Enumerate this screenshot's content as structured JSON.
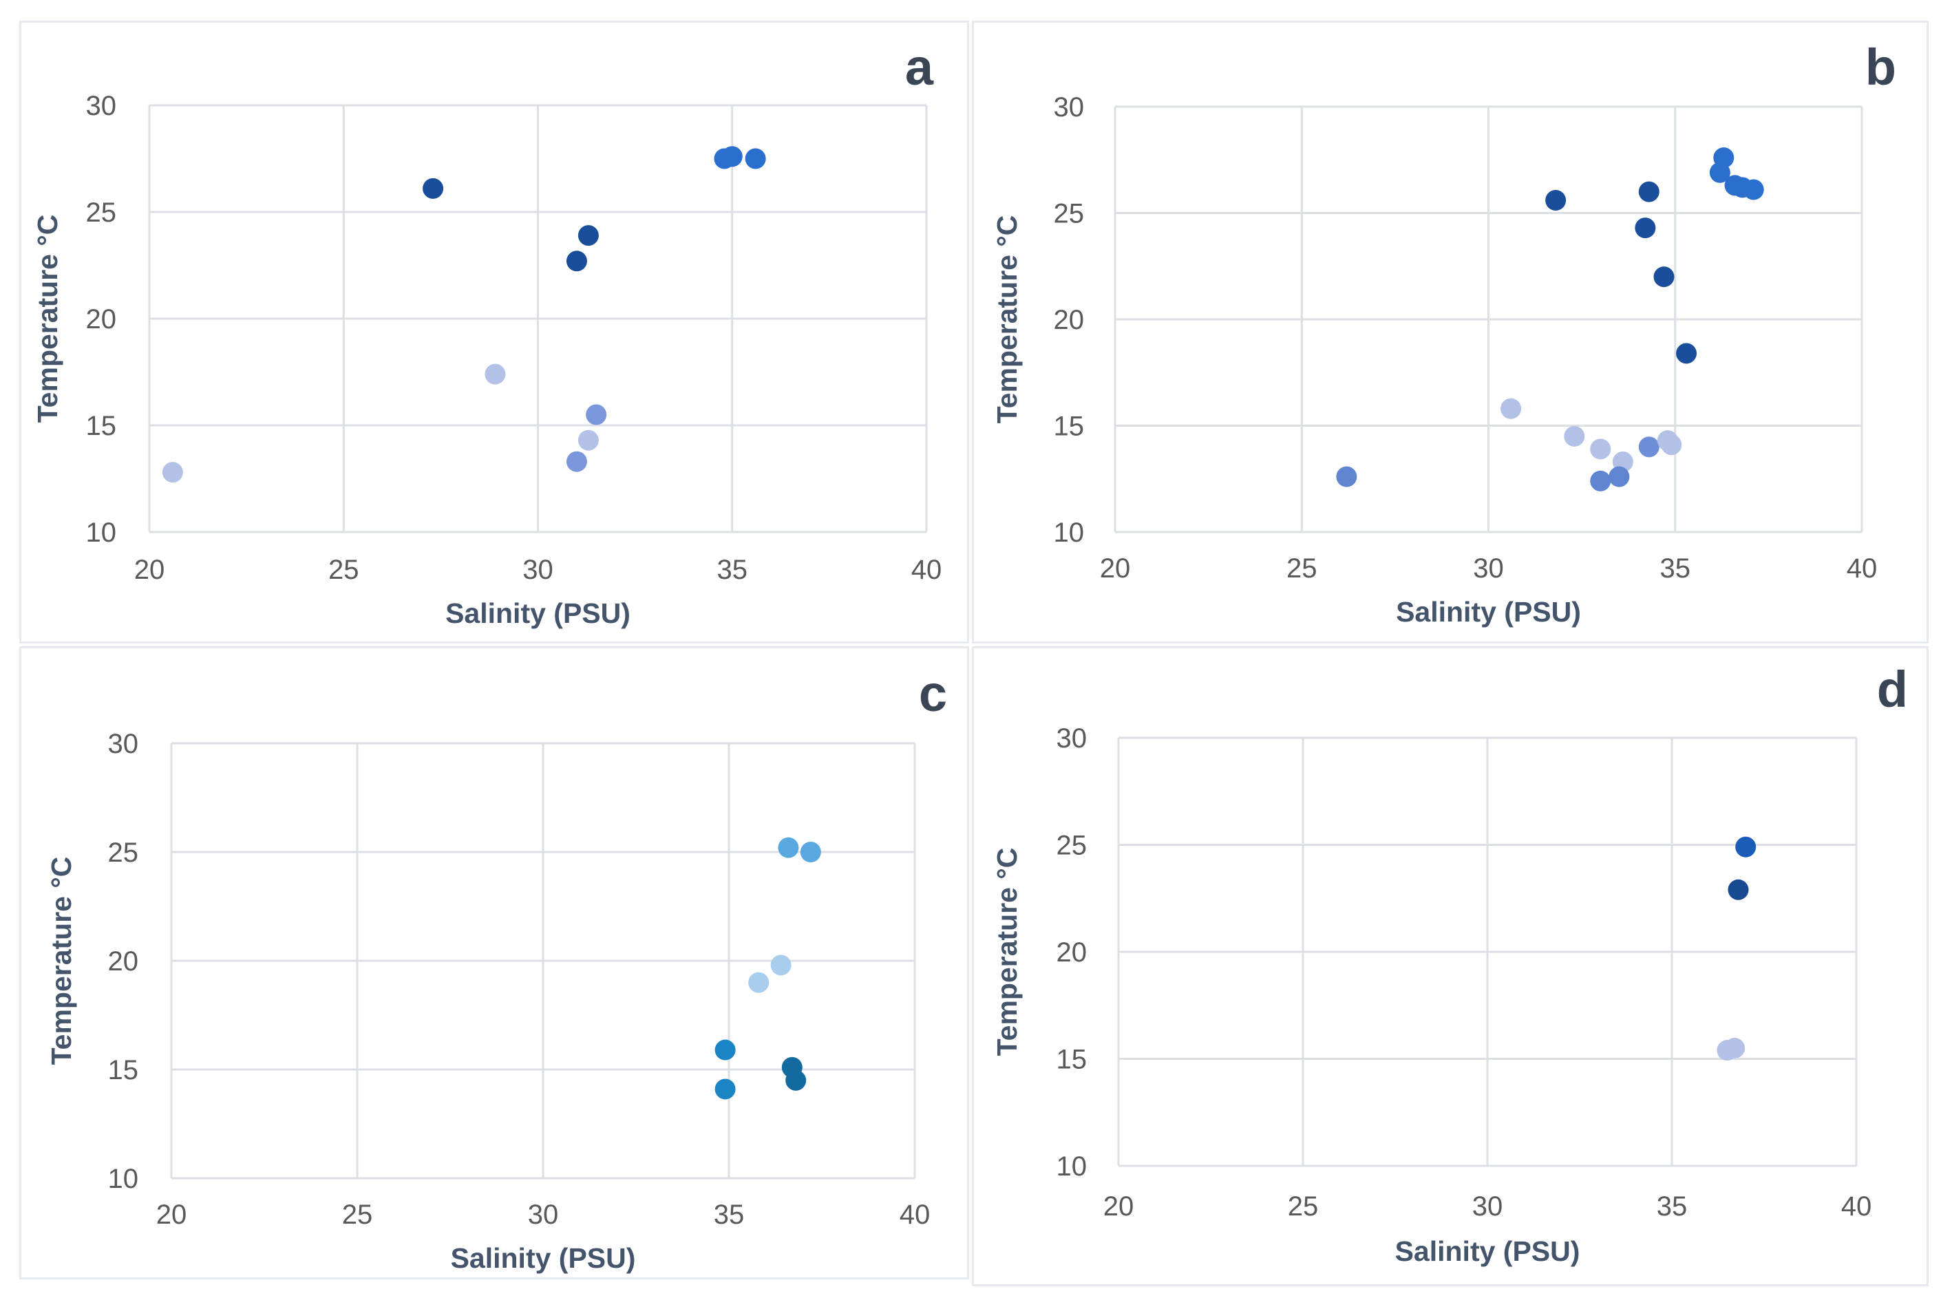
{
  "chart_data": [
    {
      "panel": "a",
      "type": "scatter",
      "title": "",
      "xlabel": "Salinity (PSU)",
      "ylabel": "Temperature °C",
      "xlim": [
        20,
        40
      ],
      "ylim": [
        10,
        30
      ],
      "xticks": [
        "20",
        "25",
        "30",
        "35",
        "40"
      ],
      "yticks": [
        "10",
        "15",
        "20",
        "25",
        "30"
      ],
      "grid": true,
      "points": [
        {
          "x": 27.3,
          "y": 26.1,
          "color": "#1a4e9a"
        },
        {
          "x": 31.3,
          "y": 23.9,
          "color": "#1a4e9a"
        },
        {
          "x": 31.0,
          "y": 22.7,
          "color": "#1a4e9a"
        },
        {
          "x": 34.8,
          "y": 27.5,
          "color": "#2a6fce"
        },
        {
          "x": 35.0,
          "y": 27.6,
          "color": "#2a6fce"
        },
        {
          "x": 35.6,
          "y": 27.5,
          "color": "#2a6fce"
        },
        {
          "x": 28.9,
          "y": 17.4,
          "color": "#b3c1e6"
        },
        {
          "x": 31.5,
          "y": 15.5,
          "color": "#7c96dc"
        },
        {
          "x": 31.3,
          "y": 14.3,
          "color": "#b3c1e6"
        },
        {
          "x": 31.0,
          "y": 13.3,
          "color": "#7c96dc"
        },
        {
          "x": 20.6,
          "y": 12.8,
          "color": "#b3c1e6"
        }
      ]
    },
    {
      "panel": "b",
      "type": "scatter",
      "title": "",
      "xlabel": "Salinity (PSU)",
      "ylabel": "Temperature °C",
      "xlim": [
        20,
        40
      ],
      "ylim": [
        10,
        30
      ],
      "xticks": [
        "20",
        "25",
        "30",
        "35",
        "40"
      ],
      "yticks": [
        "10",
        "15",
        "20",
        "25",
        "30"
      ],
      "grid": true,
      "points": [
        {
          "x": 31.8,
          "y": 25.6,
          "color": "#1a4e9a"
        },
        {
          "x": 34.3,
          "y": 26.0,
          "color": "#1a4e9a"
        },
        {
          "x": 34.2,
          "y": 24.3,
          "color": "#1a4e9a"
        },
        {
          "x": 34.7,
          "y": 22.0,
          "color": "#1a4e9a"
        },
        {
          "x": 35.3,
          "y": 18.4,
          "color": "#1a4e9a"
        },
        {
          "x": 36.3,
          "y": 27.6,
          "color": "#2a6fce"
        },
        {
          "x": 36.2,
          "y": 26.9,
          "color": "#2a6fce"
        },
        {
          "x": 36.6,
          "y": 26.3,
          "color": "#2a6fce"
        },
        {
          "x": 36.8,
          "y": 26.2,
          "color": "#2a6fce"
        },
        {
          "x": 37.1,
          "y": 26.1,
          "color": "#2a6fce"
        },
        {
          "x": 30.6,
          "y": 15.8,
          "color": "#b3c1e6"
        },
        {
          "x": 32.3,
          "y": 14.5,
          "color": "#b3c1e6"
        },
        {
          "x": 33.0,
          "y": 13.9,
          "color": "#b3c1e6"
        },
        {
          "x": 33.6,
          "y": 13.3,
          "color": "#b3c1e6"
        },
        {
          "x": 34.3,
          "y": 14.0,
          "color": "#6f8ed8"
        },
        {
          "x": 34.8,
          "y": 14.3,
          "color": "#b3c1e6"
        },
        {
          "x": 34.9,
          "y": 14.1,
          "color": "#b3c1e6"
        },
        {
          "x": 33.0,
          "y": 12.4,
          "color": "#5f85d0"
        },
        {
          "x": 33.5,
          "y": 12.6,
          "color": "#5f85d0"
        },
        {
          "x": 26.2,
          "y": 12.6,
          "color": "#5f85d0"
        }
      ]
    },
    {
      "panel": "c",
      "type": "scatter",
      "title": "",
      "xlabel": "Salinity (PSU)",
      "ylabel": "Temperature °C",
      "xlim": [
        20,
        40
      ],
      "ylim": [
        10,
        30
      ],
      "xticks": [
        "20",
        "25",
        "30",
        "35",
        "40"
      ],
      "yticks": [
        "10",
        "15",
        "20",
        "25",
        "30"
      ],
      "grid": true,
      "points": [
        {
          "x": 36.6,
          "y": 25.2,
          "color": "#5aa8e0"
        },
        {
          "x": 37.2,
          "y": 25.0,
          "color": "#5aa8e0"
        },
        {
          "x": 36.4,
          "y": 19.8,
          "color": "#a9cdec"
        },
        {
          "x": 35.8,
          "y": 19.0,
          "color": "#a9cdec"
        },
        {
          "x": 34.9,
          "y": 15.9,
          "color": "#1a84c4"
        },
        {
          "x": 36.7,
          "y": 15.1,
          "color": "#136a9e"
        },
        {
          "x": 36.8,
          "y": 14.5,
          "color": "#136a9e"
        },
        {
          "x": 34.9,
          "y": 14.1,
          "color": "#1a84c4"
        }
      ]
    },
    {
      "panel": "d",
      "type": "scatter",
      "title": "",
      "xlabel": "Salinity (PSU)",
      "ylabel": "Temperature °C",
      "xlim": [
        20,
        40
      ],
      "ylim": [
        10,
        30
      ],
      "xticks": [
        "20",
        "25",
        "30",
        "35",
        "40"
      ],
      "yticks": [
        "10",
        "15",
        "20",
        "25",
        "30"
      ],
      "grid": true,
      "points": [
        {
          "x": 37.0,
          "y": 24.9,
          "color": "#1a5cb8"
        },
        {
          "x": 36.8,
          "y": 22.9,
          "color": "#174a90"
        },
        {
          "x": 36.5,
          "y": 15.4,
          "color": "#b3c1e6"
        },
        {
          "x": 36.7,
          "y": 15.5,
          "color": "#b3c1e6"
        }
      ]
    }
  ]
}
